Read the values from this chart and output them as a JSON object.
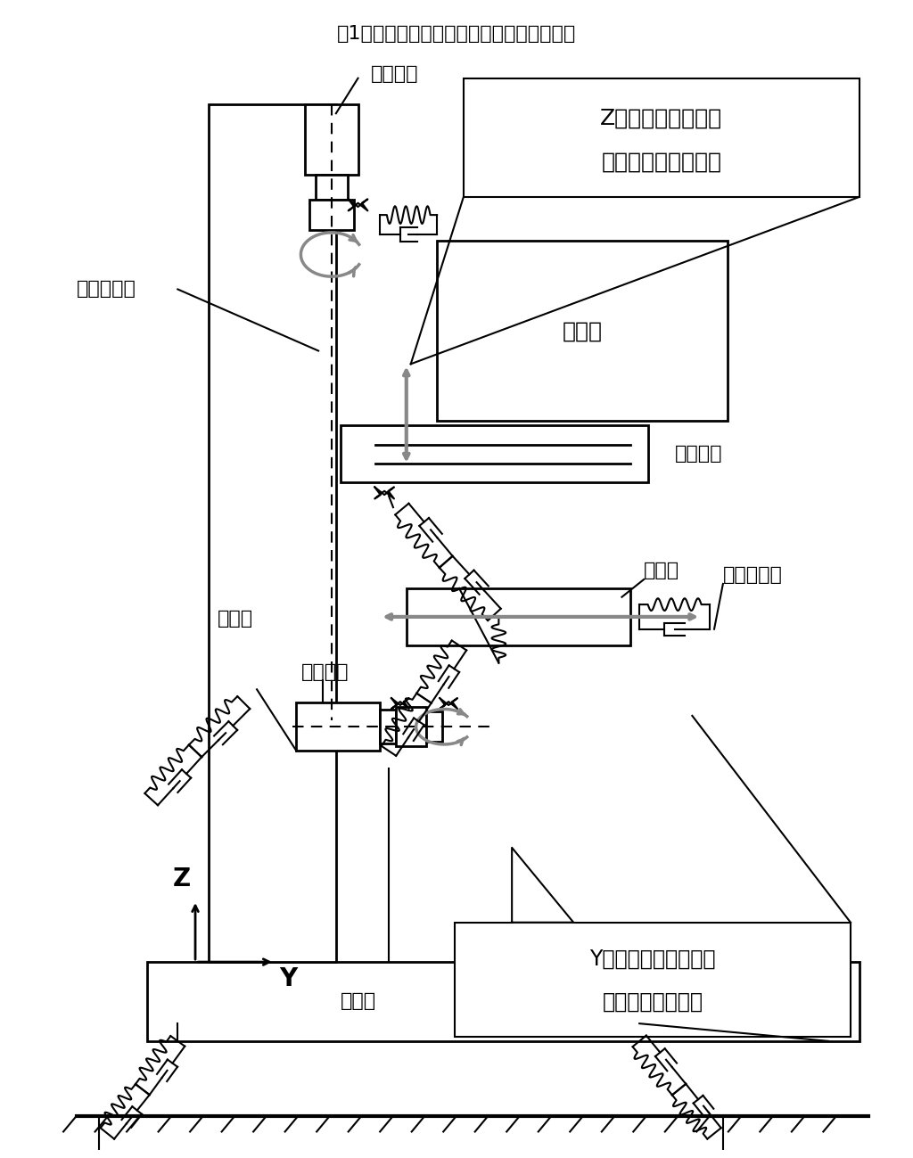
{
  "title": "図1　立形マシニングセンターの振動モデル",
  "bg_color": "#ffffff",
  "line_color": "#000000",
  "gray_color": "#888888",
  "labels": {
    "motor_top": "モーター",
    "ball_screw_left": "ボールネジ",
    "column": "コラム",
    "z_axis_box_line1": "Z軸駆動機構の摩擦",
    "z_axis_box_line2": "力および摩擦トルク",
    "main_spindle": "主軸頭",
    "table": "テーブル",
    "saddle": "サドル",
    "motor_bottom": "モーター",
    "ball_screw_right": "ボールネジ",
    "bed": "ベッド",
    "y_axis_box_line1": "Y軸駆動機構の摩擦力",
    "y_axis_box_line2": "および摩擦トルク",
    "z_label": "Z",
    "y_label": "Y"
  }
}
